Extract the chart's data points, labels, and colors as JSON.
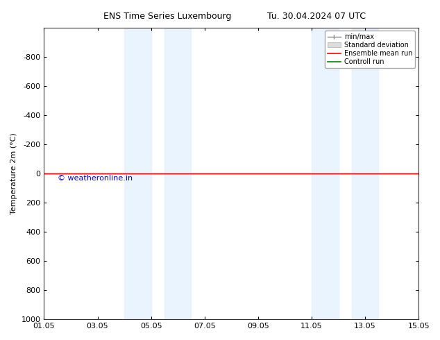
{
  "title_left": "ENS Time Series Luxembourg",
  "title_right": "Tu. 30.04.2024 07 UTC",
  "ylabel": "Temperature 2m (°C)",
  "ylim_bottom": 1000,
  "ylim_top": -1000,
  "yticks": [
    -800,
    -600,
    -400,
    -200,
    0,
    200,
    400,
    600,
    800,
    1000
  ],
  "xtick_labels": [
    "01.05",
    "03.05",
    "05.05",
    "07.05",
    "09.05",
    "11.05",
    "13.05",
    "15.05"
  ],
  "xtick_positions": [
    0,
    2,
    4,
    6,
    8,
    10,
    12,
    14
  ],
  "xlim": [
    0,
    14
  ],
  "blue_bands": [
    [
      3.0,
      4.0
    ],
    [
      4.5,
      5.5
    ],
    [
      10.0,
      11.0
    ],
    [
      11.5,
      12.5
    ]
  ],
  "green_line_y": 0,
  "red_line_y": 0,
  "legend_entries": [
    "min/max",
    "Standard deviation",
    "Ensemble mean run",
    "Controll run"
  ],
  "legend_colors": [
    "#888888",
    "#cccccc",
    "#ff0000",
    "#008800"
  ],
  "copyright_text": "© weatheronline.in",
  "copyright_color": "#0000cc",
  "bg_color": "#ffffff",
  "plot_bg_color": "#ffffff",
  "band_color": "#dbeeff",
  "band_alpha": 0.6
}
